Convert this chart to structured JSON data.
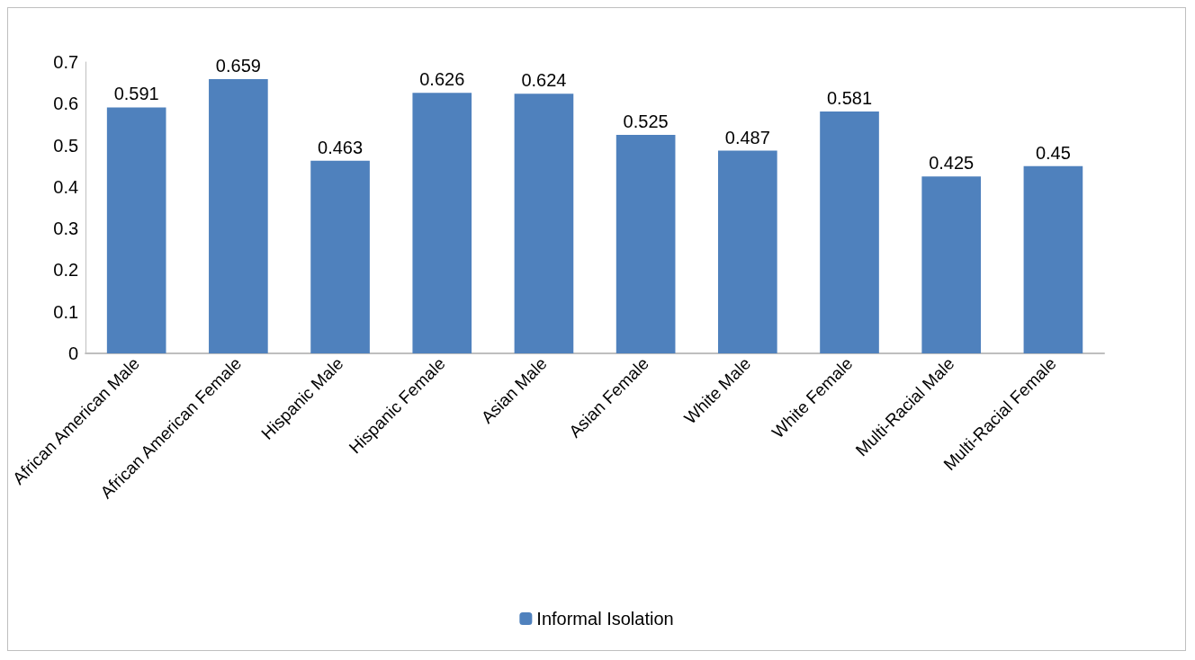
{
  "chart_data": {
    "type": "bar",
    "categories": [
      "African American Male",
      "African American Female",
      "Hispanic Male",
      "Hispanic Female",
      "Asian Male",
      "Asian Female",
      "White Male",
      "White Female",
      "Multi-Racial Male",
      "Multi-Racial Female"
    ],
    "series": [
      {
        "name": "Informal Isolation",
        "color": "#4f81bd",
        "values": [
          0.591,
          0.659,
          0.463,
          0.626,
          0.624,
          0.525,
          0.487,
          0.581,
          0.425,
          0.45
        ]
      }
    ],
    "ylim": [
      0,
      0.7
    ],
    "yticks": [
      0,
      0.1,
      0.2,
      0.3,
      0.4,
      0.5,
      0.6,
      0.7
    ],
    "data_labels": true,
    "grid": false,
    "legend": "bottom"
  }
}
